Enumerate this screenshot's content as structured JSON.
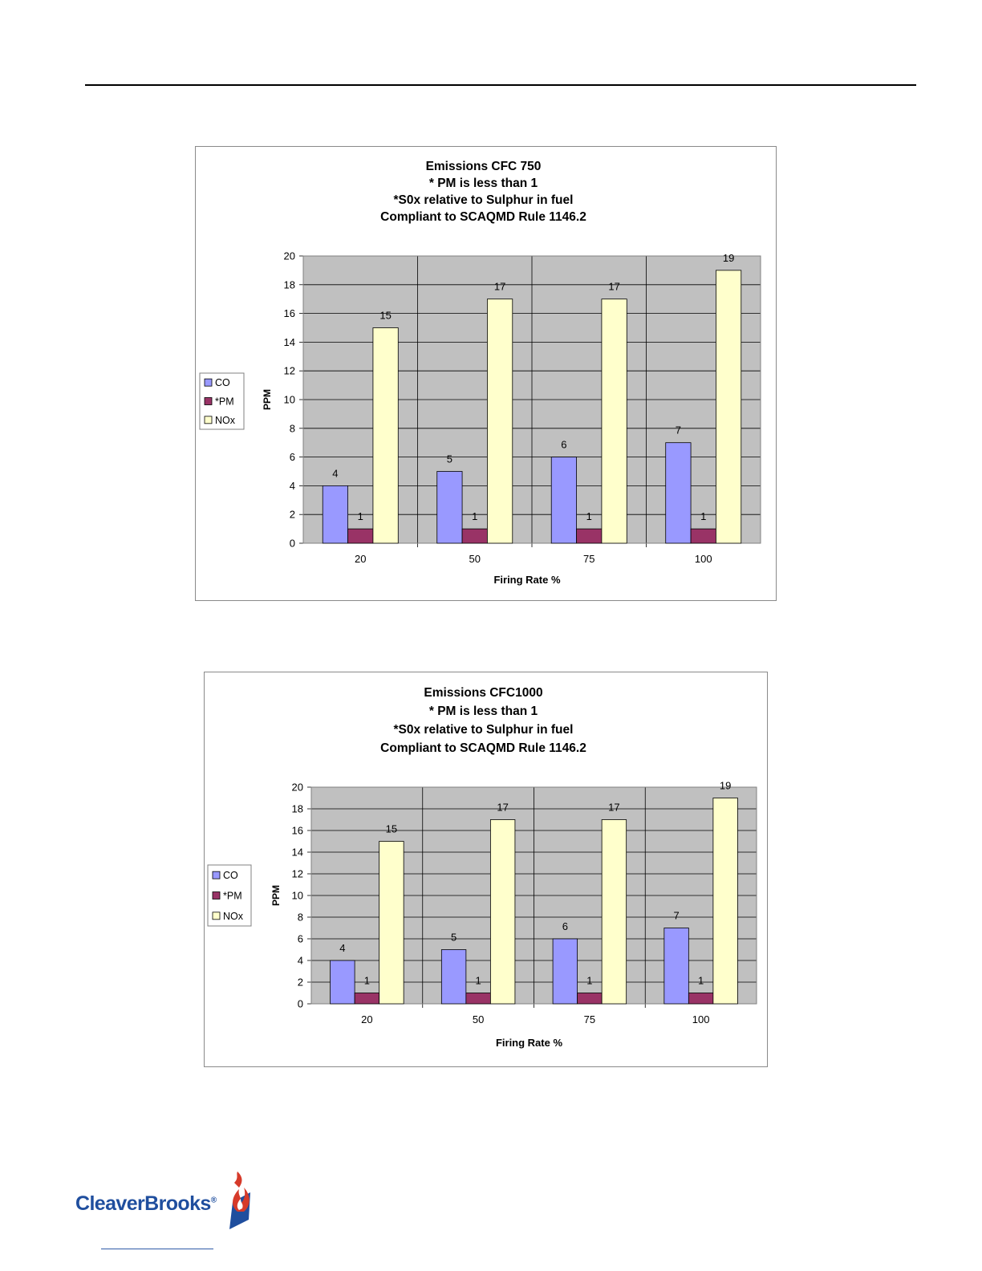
{
  "chart_data": [
    {
      "type": "bar",
      "title_lines": [
        "Emissions CFC 750",
        "* PM is less than 1",
        "*S0x relative to Sulphur in fuel",
        "Compliant to SCAQMD Rule 1146.2"
      ],
      "xlabel": "Firing Rate %",
      "ylabel": "PPM",
      "categories": [
        "20",
        "50",
        "75",
        "100"
      ],
      "ylim": [
        0,
        20
      ],
      "ytick_step": 2,
      "legend_position": "left",
      "series": [
        {
          "name": "CO",
          "color": "#9999ff",
          "values": [
            4,
            5,
            6,
            7
          ]
        },
        {
          "name": "*PM",
          "color": "#993366",
          "values": [
            1,
            1,
            1,
            1
          ]
        },
        {
          "name": "NOx",
          "color": "#ffffcc",
          "values": [
            15,
            17,
            17,
            19
          ]
        }
      ]
    },
    {
      "type": "bar",
      "title_lines": [
        "Emissions CFC1000",
        "* PM is less than 1",
        "*S0x relative to Sulphur in fuel",
        "Compliant to SCAQMD Rule 1146.2"
      ],
      "xlabel": "Firing Rate %",
      "ylabel": "PPM",
      "categories": [
        "20",
        "50",
        "75",
        "100"
      ],
      "ylim": [
        0,
        20
      ],
      "ytick_step": 2,
      "legend_position": "left",
      "series": [
        {
          "name": "CO",
          "color": "#9999ff",
          "values": [
            4,
            5,
            6,
            7
          ]
        },
        {
          "name": "*PM",
          "color": "#993366",
          "values": [
            1,
            1,
            1,
            1
          ]
        },
        {
          "name": "NOx",
          "color": "#ffffcc",
          "values": [
            15,
            17,
            17,
            19
          ]
        }
      ]
    }
  ],
  "colors": {
    "plot_background": "#c0c0c0",
    "logo_blue": "#1f4e9e",
    "logo_red": "#d63a2a"
  },
  "footer": {
    "logo_text": "CleaverBrooks",
    "logo_mark": "®"
  }
}
